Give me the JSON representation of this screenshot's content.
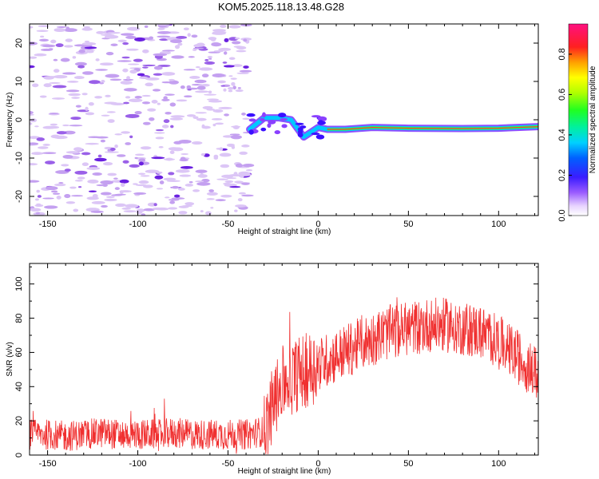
{
  "title": "KOM5.2025.118.13.48.G28",
  "colors": {
    "snr_line": "#f03030",
    "spectral_trace": "#ff3a3a",
    "noise_speckle": "#c8a8f0",
    "axis": "#000000"
  },
  "chart_data": [
    {
      "type": "heatmap",
      "title": "KOM5.2025.118.13.48.G28",
      "xlabel": "Height of straight line (km)",
      "ylabel": "Frequency (Hz)",
      "xlim": [
        -160,
        122
      ],
      "ylim": [
        -25,
        25
      ],
      "x_ticks": [
        -150,
        -100,
        -50,
        0,
        50,
        100
      ],
      "y_ticks": [
        -20,
        -10,
        0,
        10,
        20
      ],
      "colorbar": {
        "label": "Normalized spectral amplitude",
        "range": [
          0,
          0.95
        ],
        "ticks": [
          0.0,
          0.2,
          0.4,
          0.6,
          0.8
        ],
        "colormap": "rainbow (white-violet-blue-cyan-green-yellow-orange-red-magenta)"
      },
      "noise_region": {
        "x": [
          -160,
          -38
        ],
        "frequency": [
          -25,
          25
        ],
        "amplitude": "low"
      },
      "signal_trace": [
        {
          "x": -38,
          "freq": -2.5
        },
        {
          "x": -30,
          "freq": 0.5
        },
        {
          "x": -22,
          "freq": 0.5
        },
        {
          "x": -15,
          "freq": 0.0
        },
        {
          "x": -8,
          "freq": -4.5
        },
        {
          "x": 0,
          "freq": -2.0
        },
        {
          "x": 5,
          "freq": -2.5
        },
        {
          "x": 15,
          "freq": -2.5
        },
        {
          "x": 30,
          "freq": -2.0
        },
        {
          "x": 50,
          "freq": -2.2
        },
        {
          "x": 80,
          "freq": -2.3
        },
        {
          "x": 100,
          "freq": -2.2
        },
        {
          "x": 122,
          "freq": -1.8
        }
      ],
      "grid": false
    },
    {
      "type": "line",
      "xlabel": "Height of straight line (km)",
      "ylabel": "SNR (v/v)",
      "xlim": [
        -160,
        122
      ],
      "ylim": [
        0,
        112
      ],
      "x_ticks": [
        -150,
        -100,
        -50,
        0,
        50,
        100
      ],
      "y_ticks": [
        0,
        20,
        40,
        60,
        80,
        100
      ],
      "series": [
        {
          "x": [
            -160,
            -150,
            -140,
            -130,
            -120,
            -110,
            -100,
            -90,
            -80,
            -70,
            -60,
            -50,
            -40,
            -35,
            -30,
            -25,
            -20,
            -15,
            -10,
            -5,
            0,
            10,
            20,
            30,
            40,
            50,
            60,
            70,
            80,
            90,
            100,
            110,
            120
          ],
          "values": [
            12,
            12,
            11,
            12,
            13,
            12,
            12,
            12,
            13,
            12,
            12,
            12,
            12,
            13,
            14,
            30,
            42,
            45,
            48,
            50,
            53,
            58,
            63,
            68,
            72,
            74,
            76,
            76,
            74,
            72,
            66,
            58,
            48
          ]
        }
      ],
      "grid": false
    }
  ]
}
